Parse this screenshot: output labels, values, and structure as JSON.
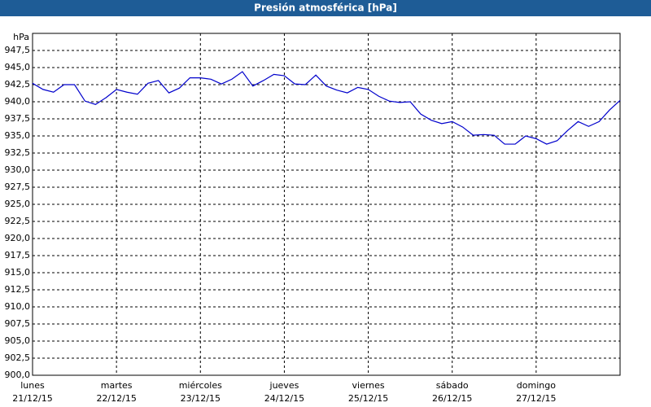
{
  "chart_data": {
    "type": "line",
    "title": "Presión atmosférica [hPa]",
    "y_label": "hPa",
    "x": [
      0,
      3,
      6,
      9,
      12,
      15,
      18,
      21,
      24,
      27,
      30,
      33,
      36,
      39,
      42,
      45,
      48,
      51,
      54,
      57,
      60,
      63,
      66,
      69,
      72,
      75,
      78,
      81,
      84,
      87,
      90,
      93,
      96,
      99,
      102,
      105,
      108,
      111,
      114,
      117,
      120,
      123,
      126,
      129,
      132,
      135,
      138,
      141,
      144,
      147,
      150,
      153,
      156,
      159,
      162,
      165,
      168
    ],
    "series": [
      {
        "color": "#0000cc",
        "values": [
          942.7,
          941.8,
          941.4,
          942.5,
          942.5,
          940.1,
          939.6,
          940.6,
          941.8,
          941.4,
          941.1,
          942.7,
          943.1,
          941.3,
          942.0,
          943.5,
          943.5,
          943.3,
          942.6,
          943.3,
          944.4,
          942.3,
          943.1,
          944.0,
          943.8,
          942.6,
          942.5,
          943.9,
          942.3,
          941.7,
          941.3,
          942.1,
          941.8,
          940.8,
          940.1,
          939.9,
          940.0,
          938.2,
          937.3,
          936.8,
          937.1,
          936.3,
          935.1,
          935.2,
          935.1,
          933.8,
          933.8,
          935.0,
          934.6,
          933.8,
          934.3,
          935.8,
          937.1,
          936.4,
          937.1,
          938.8,
          940.2
        ]
      }
    ],
    "xlim": [
      0,
      168
    ],
    "xticks": [
      {
        "value": 0,
        "label": "lunes",
        "date": "21/12/15"
      },
      {
        "value": 24,
        "label": "martes",
        "date": "22/12/15"
      },
      {
        "value": 48,
        "label": "miércoles",
        "date": "23/12/15"
      },
      {
        "value": 72,
        "label": "jueves",
        "date": "24/12/15"
      },
      {
        "value": 96,
        "label": "viernes",
        "date": "25/12/15"
      },
      {
        "value": 120,
        "label": "sábado",
        "date": "26/12/15"
      },
      {
        "value": 144,
        "label": "domingo",
        "date": "27/12/15"
      }
    ],
    "ylim": [
      900,
      950
    ],
    "yticks": [
      {
        "value": 900,
        "label": "900,0"
      },
      {
        "value": 902.5,
        "label": "902,5"
      },
      {
        "value": 905,
        "label": "905,0"
      },
      {
        "value": 907.5,
        "label": "907,5"
      },
      {
        "value": 910,
        "label": "910,0"
      },
      {
        "value": 912.5,
        "label": "912,5"
      },
      {
        "value": 915,
        "label": "915,0"
      },
      {
        "value": 917.5,
        "label": "917,5"
      },
      {
        "value": 920,
        "label": "920,0"
      },
      {
        "value": 922.5,
        "label": "922,5"
      },
      {
        "value": 925,
        "label": "925,0"
      },
      {
        "value": 927.5,
        "label": "927,5"
      },
      {
        "value": 930,
        "label": "930,0"
      },
      {
        "value": 932.5,
        "label": "932,5"
      },
      {
        "value": 935,
        "label": "935,0"
      },
      {
        "value": 937.5,
        "label": "937,5"
      },
      {
        "value": 940,
        "label": "940,0"
      },
      {
        "value": 942.5,
        "label": "942,5"
      },
      {
        "value": 945,
        "label": "945,0"
      },
      {
        "value": 947.5,
        "label": "947,5"
      }
    ],
    "grid": true
  }
}
